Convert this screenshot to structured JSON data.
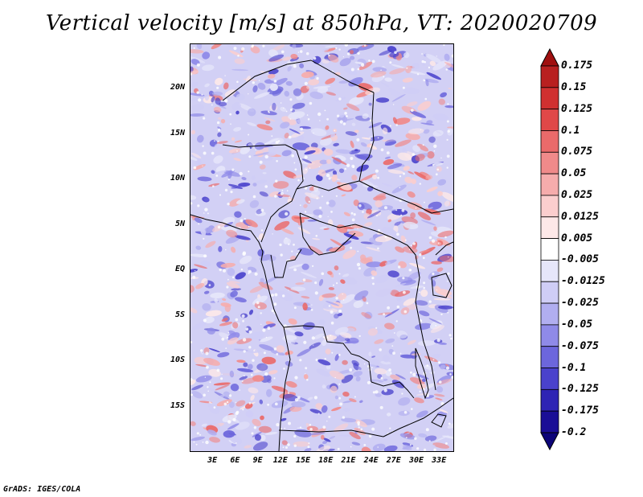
{
  "title": "Vertical velocity [m/s] at 850hPa, VT: 2020020709",
  "footer": "GrADS: IGES/COLA",
  "map": {
    "region": "Central Africa",
    "variable": "Vertical velocity",
    "units": "m/s",
    "level": "850hPa",
    "valid_time": "2020020709",
    "lon_range": [
      0,
      35
    ],
    "lat_range": [
      -20,
      25
    ],
    "lat_ticks": [
      {
        "value": 20,
        "label": "20N"
      },
      {
        "value": 15,
        "label": "15N"
      },
      {
        "value": 10,
        "label": "10N"
      },
      {
        "value": 5,
        "label": "5N"
      },
      {
        "value": 0,
        "label": "EQ"
      },
      {
        "value": -5,
        "label": "5S"
      },
      {
        "value": -10,
        "label": "10S"
      },
      {
        "value": -15,
        "label": "15S"
      }
    ],
    "lon_ticks": [
      {
        "value": 3,
        "label": "3E"
      },
      {
        "value": 6,
        "label": "6E"
      },
      {
        "value": 9,
        "label": "9E"
      },
      {
        "value": 12,
        "label": "12E"
      },
      {
        "value": 15,
        "label": "15E"
      },
      {
        "value": 18,
        "label": "18E"
      },
      {
        "value": 21,
        "label": "21E"
      },
      {
        "value": 24,
        "label": "24E"
      },
      {
        "value": 27,
        "label": "27E"
      },
      {
        "value": 30,
        "label": "30E"
      },
      {
        "value": 33,
        "label": "33E"
      }
    ]
  },
  "colorbar": {
    "levels": [
      {
        "label": "0.175"
      },
      {
        "label": "0.15"
      },
      {
        "label": "0.125"
      },
      {
        "label": "0.1"
      },
      {
        "label": "0.075"
      },
      {
        "label": "0.05"
      },
      {
        "label": "0.025"
      },
      {
        "label": "0.0125"
      },
      {
        "label": "0.005"
      },
      {
        "label": "-0.005"
      },
      {
        "label": "-0.0125"
      },
      {
        "label": "-0.025"
      },
      {
        "label": "-0.05"
      },
      {
        "label": "-0.075"
      },
      {
        "label": "-0.1"
      },
      {
        "label": "-0.125"
      },
      {
        "label": "-0.175"
      },
      {
        "label": "-0.2"
      }
    ],
    "colors": [
      "#a01010",
      "#b82020",
      "#d03030",
      "#e04848",
      "#ea6a6a",
      "#f08a8a",
      "#f6acac",
      "#fbcece",
      "#fde8e8",
      "#ffffff",
      "#e6e6fa",
      "#cfcdf6",
      "#b1aef0",
      "#8f8ae8",
      "#6c66dc",
      "#4a42cc",
      "#2e24b4",
      "#1a0e96",
      "#0c0478"
    ]
  }
}
